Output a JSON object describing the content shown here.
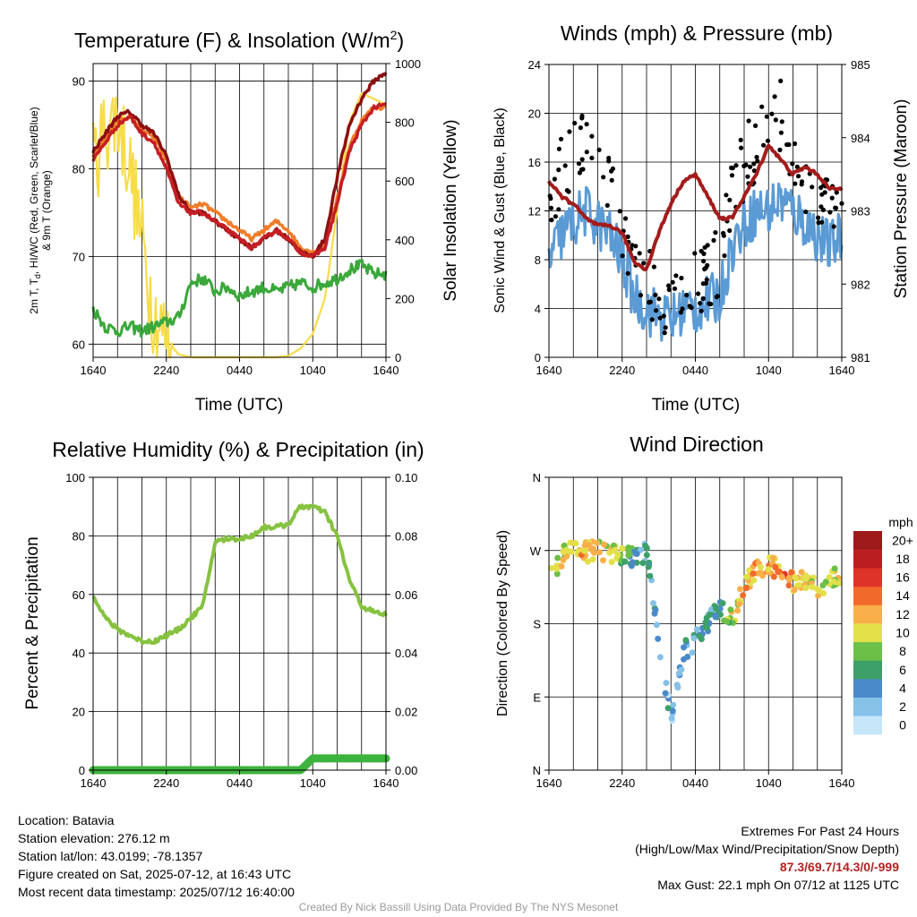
{
  "panels": {
    "temp": {
      "title_main": "Temperature (F) & Insolation (W/m",
      "title_sup": "2",
      "title_end": ")",
      "ylabel_left_1": "2m T, T",
      "ylabel_left_sub": "d",
      "ylabel_left_2": ", HI/WC (Red, Green, Scarlet/Blue)",
      "ylabel_left_3": "& 9m T (Orange)",
      "ylabel_right": "Solar Insolation (Yellow)",
      "xlabel": "Time (UTC)",
      "yticks_left": [
        "60",
        "70",
        "80",
        "90"
      ],
      "yticks_right": [
        "0",
        "200",
        "400",
        "600",
        "800",
        "1000"
      ]
    },
    "wind": {
      "title": "Winds (mph) & Pressure (mb)",
      "ylabel_left": "Sonic Wind & Gust (Blue, Black)",
      "ylabel_right": "Station Pressure (Maroon)",
      "xlabel": "Time (UTC)",
      "yticks_left": [
        "0",
        "4",
        "8",
        "12",
        "16",
        "20",
        "24"
      ],
      "yticks_right": [
        "981",
        "982",
        "983",
        "984",
        "985"
      ]
    },
    "rh": {
      "title": "Relative Humidity (%) & Precipitation (in)",
      "ylabel_left": "Percent & Precipitation",
      "yticks_left": [
        "0",
        "20",
        "40",
        "60",
        "80",
        "100"
      ],
      "yticks_right": [
        "0.00",
        "0.02",
        "0.04",
        "0.06",
        "0.08",
        "0.10"
      ]
    },
    "dir": {
      "title": "Wind Direction",
      "ylabel_left": "Direction (Colored By Speed)",
      "yticks_left": [
        "N",
        "E",
        "S",
        "W",
        "N"
      ],
      "colorbar_title": "mph",
      "colorbar_labels": [
        "0",
        "2",
        "4",
        "6",
        "8",
        "10",
        "12",
        "14",
        "16",
        "18",
        "20+"
      ]
    }
  },
  "xticks": [
    "1640",
    "2240",
    "0440",
    "1040",
    "1640"
  ],
  "colors": {
    "temp": "#c41e24",
    "temp9m": "#f07c28",
    "heat_index": "#8b1010",
    "dewpoint": "#3aa83a",
    "solar": "#f7dc4a",
    "wind": "#5b9bd5",
    "gust": "#000000",
    "pressure": "#a31c1c",
    "rh": "#86c240",
    "precip": "#3db33d",
    "colorbar": [
      "#c6e6fa",
      "#86c1e8",
      "#4b8ac9",
      "#3da06a",
      "#6cbf47",
      "#e3e04a",
      "#f9b04b",
      "#f26a2b",
      "#dd3328",
      "#bb1e21",
      "#9e1a1a"
    ]
  },
  "chart_data": [
    {
      "type": "line",
      "title": "Temperature (F) & Insolation (W/m2)",
      "xlabel": "Time (UTC)",
      "ylabel": "2m T, Td, HI/WC (Red, Green, Scarlet/Blue) & 9m T (Orange)",
      "ylabel_right": "Solar Insolation (Yellow)",
      "ylim": [
        58.5,
        92
      ],
      "ylim_right": [
        0,
        1000
      ],
      "x": [
        0,
        1,
        2,
        3,
        4,
        5,
        6,
        7,
        8,
        9,
        10,
        11,
        12,
        13,
        14,
        15,
        16,
        17,
        18,
        19,
        20,
        21,
        22,
        23,
        24
      ],
      "x_tick_labels": [
        "1640",
        "2240",
        "0440",
        "1040",
        "1640"
      ],
      "series": [
        {
          "values": [
            81,
            83,
            85,
            86,
            84,
            83,
            80,
            76,
            75,
            75,
            74,
            73,
            72,
            71,
            72,
            73,
            72,
            70.5,
            70,
            71,
            76,
            82,
            85,
            87,
            87.3
          ]
        },
        {
          "values": [
            81.5,
            83.5,
            85.5,
            86,
            84.5,
            83.5,
            81,
            77,
            75.5,
            76,
            75,
            74,
            73,
            72,
            73,
            74,
            73,
            71,
            70.5,
            71.5,
            76.5,
            82.5,
            85.5,
            87,
            87
          ]
        },
        {
          "values": [
            82,
            84,
            86,
            86.5,
            85,
            84,
            81.5,
            77,
            75,
            75,
            74,
            73,
            72,
            71,
            72,
            73,
            72,
            70.5,
            70,
            72,
            79,
            85,
            88,
            90,
            91
          ]
        },
        {
          "values": [
            64,
            62,
            61.5,
            62,
            61.5,
            62,
            62.5,
            63,
            67,
            67.5,
            66,
            66.5,
            65.5,
            66,
            66.5,
            66,
            66.5,
            67,
            66.5,
            67,
            67.5,
            68.5,
            69,
            68,
            68
          ]
        },
        {
          "values": [
            650,
            780,
            820,
            650,
            400,
            150,
            60,
            10,
            0,
            0,
            0,
            0,
            0,
            0,
            0,
            0,
            5,
            30,
            80,
            200,
            500,
            800,
            900,
            880,
            860
          ]
        }
      ]
    },
    {
      "type": "line",
      "title": "Winds (mph) & Pressure (mb)",
      "xlabel": "Time (UTC)",
      "ylabel": "Sonic Wind & Gust (Blue, Black)",
      "ylabel_right": "Station Pressure (Maroon)",
      "ylim": [
        0,
        24
      ],
      "ylim_right": [
        981,
        985
      ],
      "x": [
        0,
        1,
        2,
        3,
        4,
        5,
        6,
        7,
        8,
        9,
        10,
        11,
        12,
        13,
        14,
        15,
        16,
        17,
        18,
        19,
        20,
        21,
        22,
        23,
        24
      ],
      "x_tick_labels": [
        "1640",
        "2240",
        "0440",
        "1040",
        "1640"
      ],
      "series": [
        {
          "values": [
            8,
            10,
            11,
            12,
            11,
            10,
            8,
            5,
            4,
            3.5,
            3,
            4,
            4,
            4.5,
            5,
            9,
            11,
            12,
            12,
            13,
            12,
            11,
            10,
            9,
            10
          ]
        },
        {
          "values": [
            13,
            15,
            16,
            18,
            17,
            14,
            11,
            8,
            6,
            5,
            5,
            6,
            6,
            7,
            8,
            13,
            16,
            17,
            19,
            20,
            16,
            14,
            13,
            12,
            13
          ]
        },
        {
          "values": [
            983.4,
            983.2,
            983.1,
            982.9,
            982.8,
            982.8,
            982.7,
            982.3,
            982.2,
            982.7,
            983.1,
            983.4,
            983.5,
            983.2,
            982.9,
            982.9,
            983.2,
            983.5,
            983.9,
            983.7,
            983.5,
            983.6,
            983.5,
            983.3,
            983.3
          ]
        }
      ]
    },
    {
      "type": "line",
      "title": "Relative Humidity (%) & Precipitation (in)",
      "ylabel": "Percent & Precipitation",
      "ylim": [
        0,
        100
      ],
      "ylim_right": [
        0,
        0.1
      ],
      "x": [
        0,
        1,
        2,
        3,
        4,
        5,
        6,
        7,
        8,
        9,
        10,
        11,
        12,
        13,
        14,
        15,
        16,
        17,
        18,
        19,
        20,
        21,
        22,
        23,
        24
      ],
      "x_tick_labels": [
        "1640",
        "2240",
        "0440",
        "1040",
        "1640"
      ],
      "series": [
        {
          "values": [
            60,
            52,
            48,
            46,
            44,
            44,
            46,
            48,
            52,
            56,
            78,
            79,
            79,
            80,
            83,
            83,
            84,
            90,
            90,
            88,
            80,
            65,
            56,
            54,
            53
          ]
        },
        {
          "values": [
            0,
            0,
            0,
            0,
            0,
            0,
            0,
            0,
            0,
            0,
            0,
            0,
            0,
            0,
            0,
            0,
            0,
            0,
            0.004,
            0.004,
            0.004,
            0.004,
            0.004,
            0.004,
            0.004
          ]
        }
      ]
    },
    {
      "type": "scatter",
      "title": "Wind Direction",
      "ylabel": "Direction (Colored By Speed)",
      "ylim": [
        0,
        360
      ],
      "y_tick_labels": [
        "N",
        "E",
        "S",
        "W",
        "N"
      ],
      "x": [
        0,
        1,
        2,
        3,
        4,
        5,
        6,
        7,
        8,
        9,
        10,
        11,
        12,
        13,
        14,
        15,
        16,
        17,
        18,
        19,
        20,
        21,
        22,
        23,
        24
      ],
      "x_tick_labels": [
        "1640",
        "2240",
        "0440",
        "1040",
        "1640"
      ],
      "series": [
        {
          "values": [
            230,
            262,
            270,
            268,
            270,
            265,
            266,
            262,
            268,
            160,
            60,
            145,
            160,
            180,
            200,
            185,
            228,
            245,
            255,
            242,
            232,
            232,
            222,
            235,
            242
          ]
        }
      ],
      "colorbar_label": "mph",
      "colorbar_ticks": [
        "0",
        "2",
        "4",
        "6",
        "8",
        "10",
        "12",
        "14",
        "16",
        "18",
        "20+"
      ]
    }
  ],
  "footer": {
    "location": "Location: Batavia",
    "elevation": "Station elevation: 276.12 m",
    "latlon": "Station lat/lon: 43.0199; -78.1357",
    "created": "Figure created on Sat, 2025-07-12, at 16:43 UTC",
    "timestamp": "Most recent data timestamp: 2025/07/12 16:40:00",
    "extremes_title": "Extremes For Past 24 Hours",
    "extremes_subtitle": "(High/Low/Max Wind/Precipitation/Snow Depth)",
    "extremes_values": "87.3/69.7/14.3/0/-999",
    "max_gust": "Max Gust: 22.1 mph On 07/12 at 1125 UTC",
    "credit": "Created By Nick Bassill Using Data Provided By The NYS Mesonet"
  }
}
